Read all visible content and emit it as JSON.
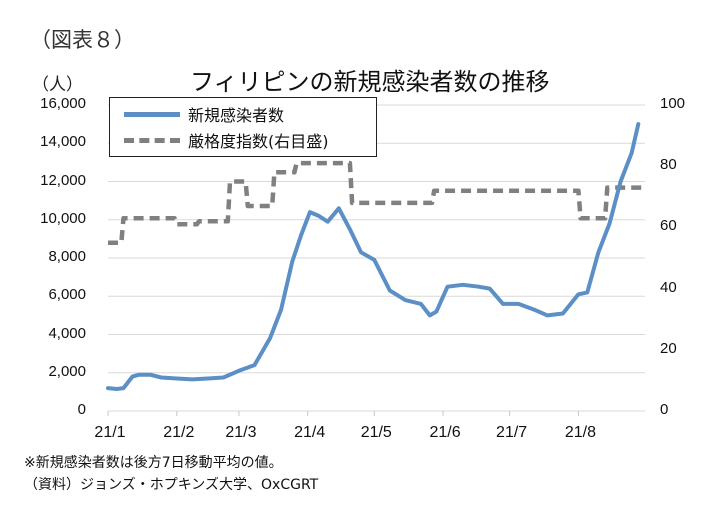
{
  "figure": {
    "label": "（図表８）",
    "title": "フィリピンの新規感染者数の推移",
    "left_unit": "（人）",
    "notes": [
      "※新規感染者数は後方7日移動平均の値。",
      "（資料）ジョンズ・ホプキンズ大学、OxCGRT"
    ]
  },
  "legend": {
    "items": [
      {
        "label": "新規感染者数",
        "style": "solid",
        "color": "#5b8fc6"
      },
      {
        "label": "厳格度指数(右目盛)",
        "style": "dashed",
        "color": "#808080"
      }
    ]
  },
  "axes": {
    "y_left_ticks": [
      "16,000",
      "14,000",
      "12,000",
      "10,000",
      "8,000",
      "6,000",
      "4,000",
      "2,000",
      "0"
    ],
    "y_right_ticks": [
      "100",
      "80",
      "60",
      "40",
      "20",
      "0"
    ],
    "x_ticks": [
      "21/1",
      "21/2",
      "21/3",
      "21/4",
      "21/5",
      "21/6",
      "21/7",
      "21/8"
    ]
  },
  "colors": {
    "cases": "#5b8fc6",
    "stringency": "#808080",
    "grid": "#d9d9d9"
  },
  "chart_data": {
    "type": "line",
    "title": "フィリピンの新規感染者数の推移",
    "xlabel": "",
    "ylabel": "（人）",
    "y2label": "厳格度指数",
    "ylim": [
      0,
      16000
    ],
    "y2lim": [
      0,
      100
    ],
    "grid": true,
    "legend_position": "upper-left (inside)",
    "categories": [
      "21/1",
      "21/2",
      "21/3",
      "21/4",
      "21/5",
      "21/6",
      "21/7",
      "21/8"
    ],
    "series": [
      {
        "name": "新規感染者数",
        "axis": "left",
        "style": "solid",
        "x": [
          "21/1/1",
          "21/1/5",
          "21/1/8",
          "21/1/12",
          "21/1/15",
          "21/1/20",
          "21/1/25",
          "21/2/1",
          "21/2/8",
          "21/2/15",
          "21/2/22",
          "21/3/1",
          "21/3/8",
          "21/3/15",
          "21/3/20",
          "21/3/25",
          "21/3/29",
          "21/4/2",
          "21/4/6",
          "21/4/10",
          "21/4/15",
          "21/4/20",
          "21/4/25",
          "21/5/1",
          "21/5/8",
          "21/5/15",
          "21/5/22",
          "21/5/26",
          "21/5/29",
          "21/6/3",
          "21/6/10",
          "21/6/17",
          "21/6/22",
          "21/6/28",
          "21/7/5",
          "21/7/12",
          "21/7/18",
          "21/7/25",
          "21/8/1",
          "21/8/5",
          "21/8/10",
          "21/8/15",
          "21/8/20",
          "21/8/25",
          "21/8/28"
        ],
        "values": [
          1200,
          1150,
          1200,
          1800,
          1900,
          1900,
          1750,
          1700,
          1650,
          1700,
          1750,
          2100,
          2400,
          3800,
          5300,
          7800,
          9200,
          10400,
          10200,
          9900,
          10600,
          9500,
          8300,
          7900,
          6300,
          5800,
          5600,
          5000,
          5200,
          6500,
          6600,
          6500,
          6400,
          5600,
          5600,
          5300,
          5000,
          5100,
          6100,
          6200,
          8300,
          9800,
          12000,
          13500,
          15000
        ]
      },
      {
        "name": "厳格度指数(右目盛)",
        "axis": "right",
        "style": "dashed",
        "x": [
          "21/1/1",
          "21/1/7",
          "21/1/8",
          "21/1/31",
          "21/2/1",
          "21/2/10",
          "21/2/11",
          "21/2/24",
          "21/2/25",
          "21/3/4",
          "21/3/5",
          "21/3/16",
          "21/3/17",
          "21/3/26",
          "21/3/27",
          "21/4/20",
          "21/4/21",
          "21/5/27",
          "21/5/28",
          "21/8/1",
          "21/8/2",
          "21/8/13",
          "21/8/14",
          "21/8/31"
        ],
        "values": [
          55,
          55,
          63,
          63,
          61,
          61,
          62,
          62,
          75,
          75,
          67,
          67,
          78,
          78,
          81,
          81,
          68,
          68,
          72,
          72,
          63,
          63,
          73,
          73
        ]
      }
    ]
  }
}
